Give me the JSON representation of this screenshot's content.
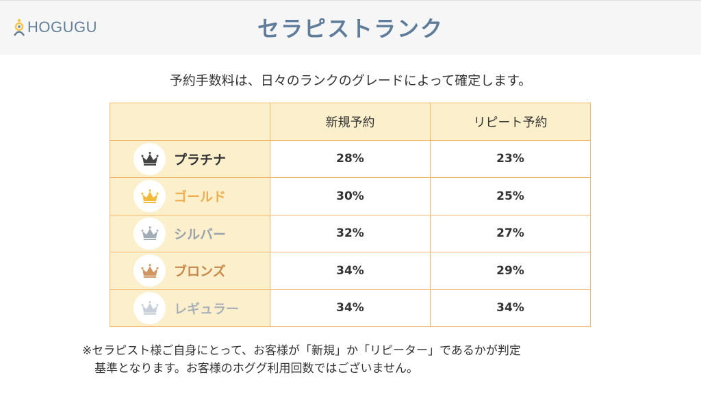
{
  "header": {
    "logo": "HOGUGU",
    "title": "セラピストランク"
  },
  "lead": "予約手数料は、日々のランクのグレードによって確定します。",
  "table": {
    "columns": [
      "",
      "新規予約",
      "リピート予約"
    ],
    "rows": [
      {
        "rank": "プラチナ",
        "color": "#333333",
        "icon": "crown-platinum-icon",
        "crown": "#444444",
        "new": "28%",
        "repeat": "23%"
      },
      {
        "rank": "ゴールド",
        "color": "#f0ad4e",
        "icon": "crown-gold-icon",
        "crown": "#f2bb3c",
        "new": "30%",
        "repeat": "25%"
      },
      {
        "rank": "シルバー",
        "color": "#98a2ad",
        "icon": "crown-silver-icon",
        "crown": "#a3adb8",
        "new": "32%",
        "repeat": "27%"
      },
      {
        "rank": "ブロンズ",
        "color": "#c8884a",
        "icon": "crown-bronze-icon",
        "crown": "#d09561",
        "new": "34%",
        "repeat": "29%"
      },
      {
        "rank": "レギュラー",
        "color": "#a9b0b8",
        "icon": "crown-regular-icon",
        "crown": "#c7d0da",
        "new": "34%",
        "repeat": "34%"
      }
    ]
  },
  "note": {
    "line1": "※セラピスト様ご自身にとって、お客様が「新規」か「リピーター」であるかが判定",
    "line2": "基準となります。お客様のホググ利用回数ではございません。"
  }
}
